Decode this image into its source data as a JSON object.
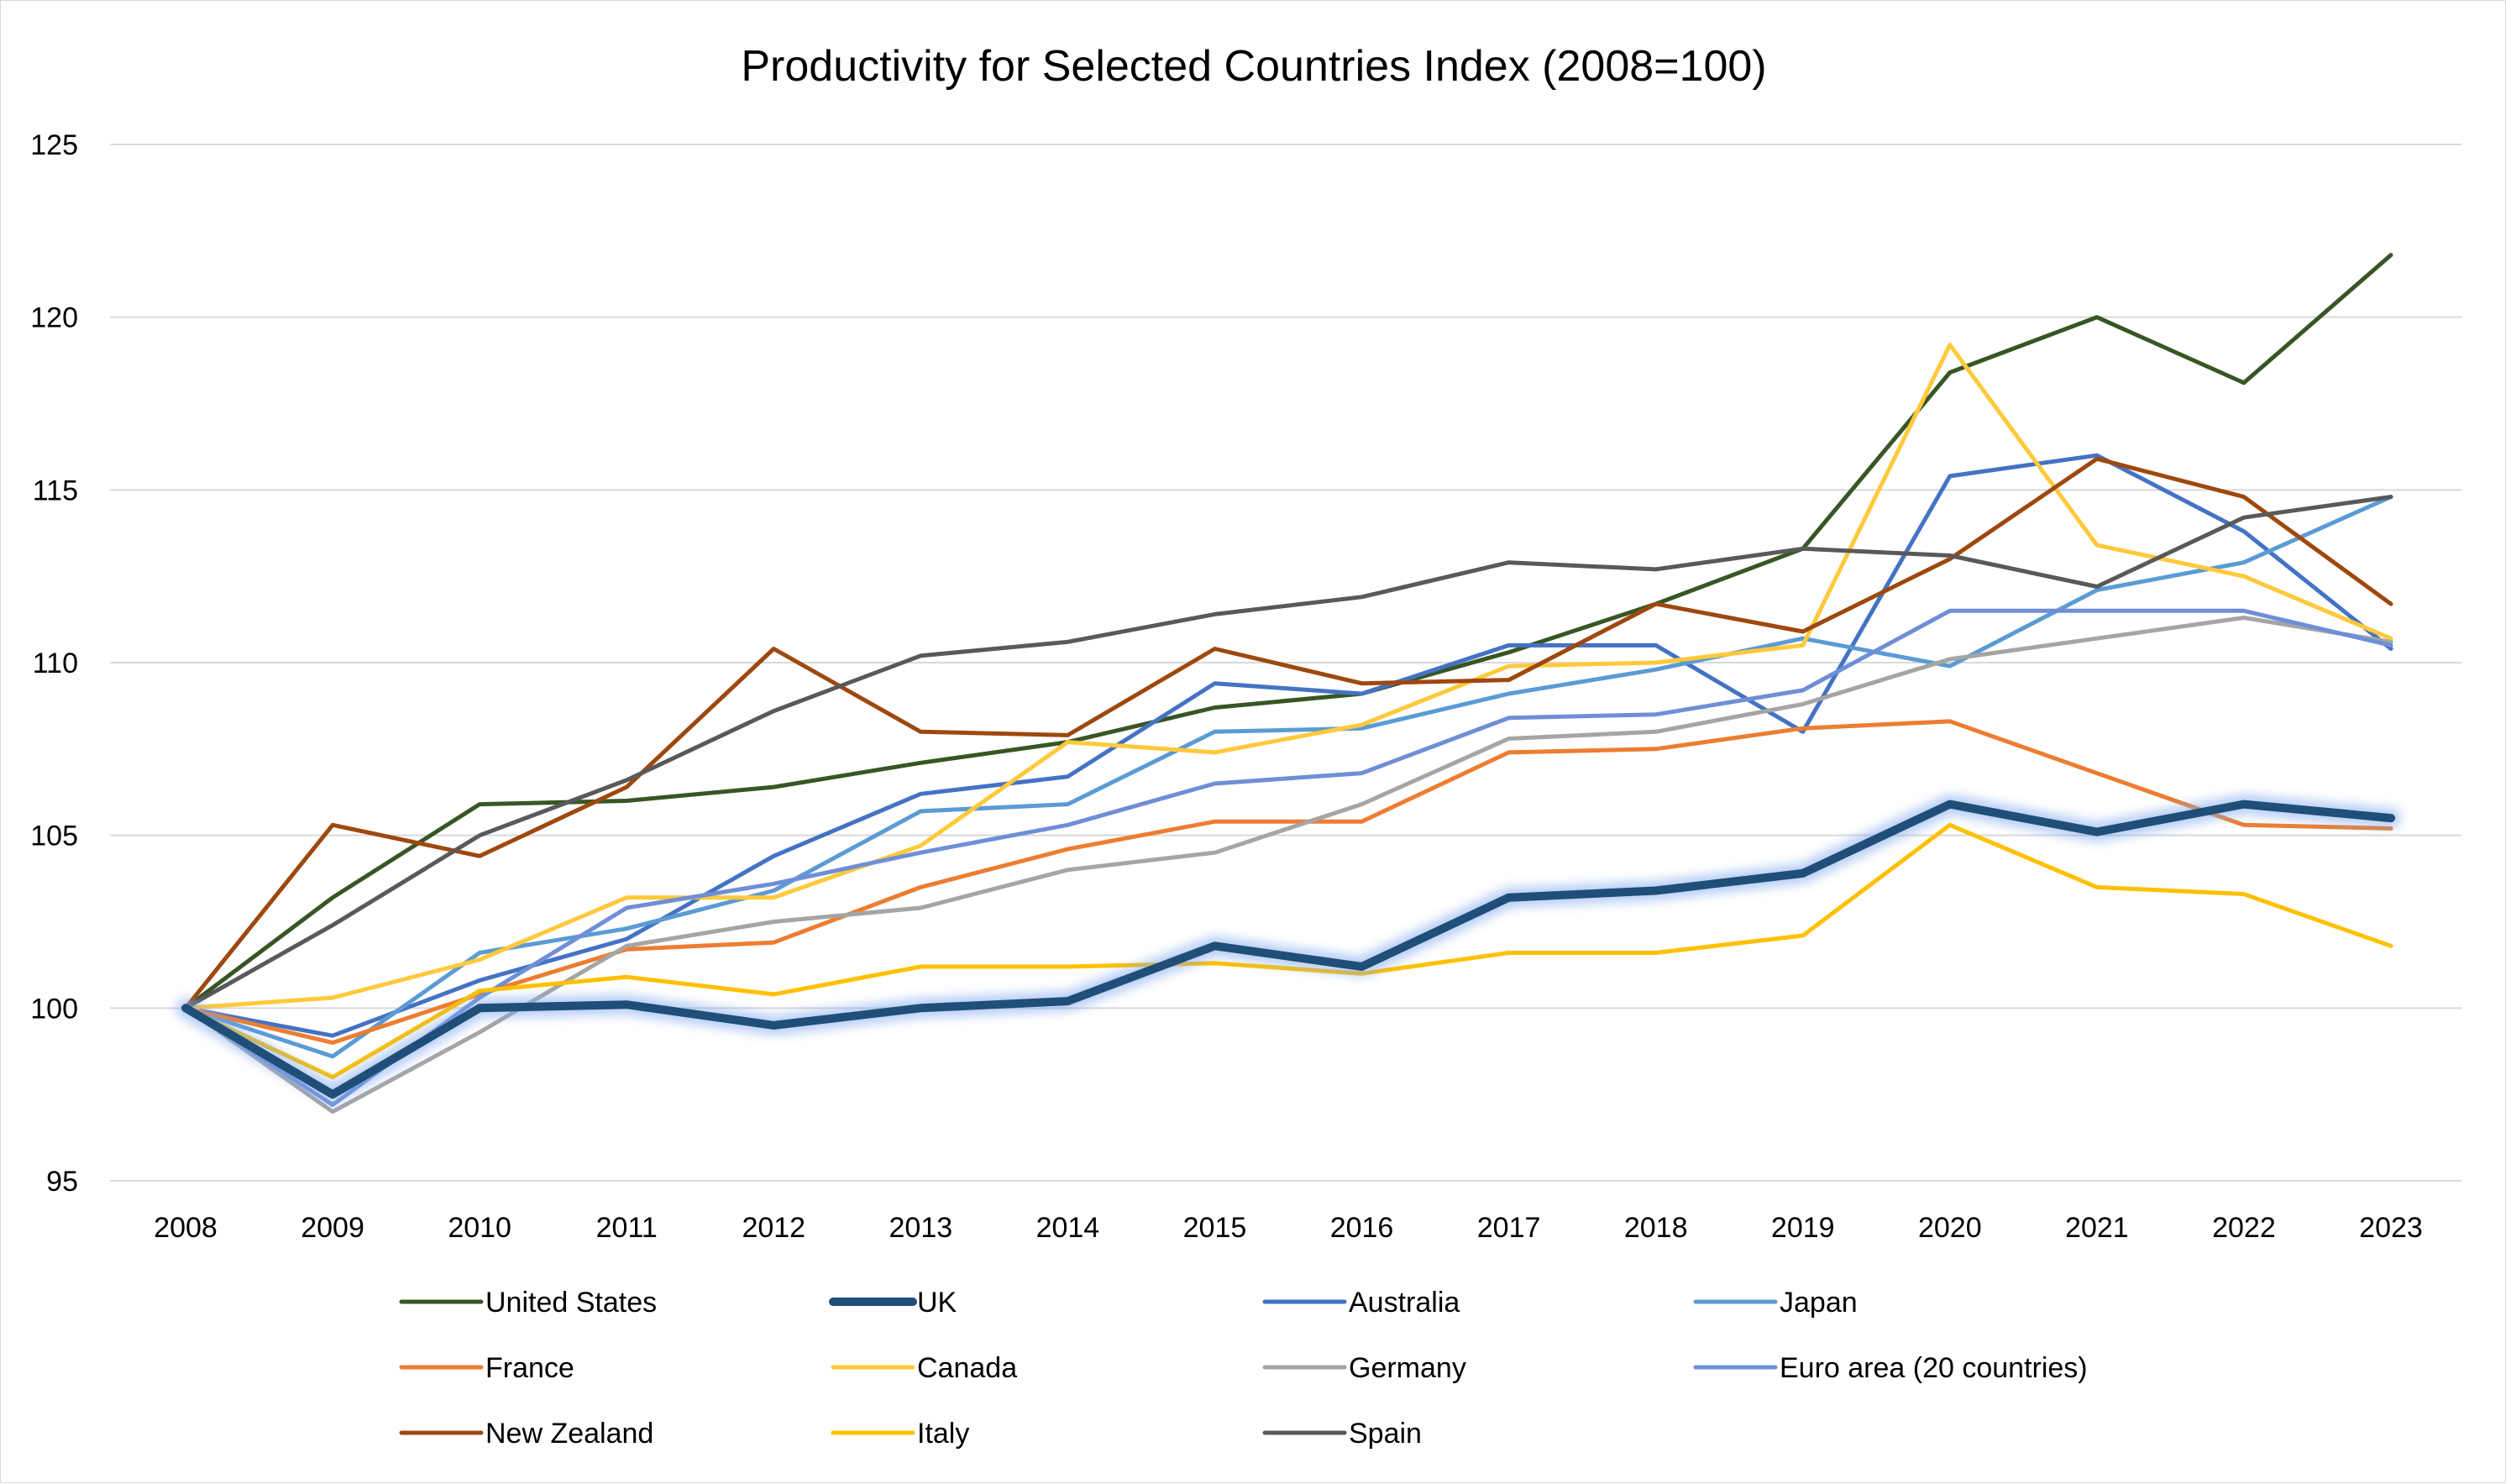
{
  "chart_data": {
    "type": "line",
    "title": "Productivity for Selected Countries Index (2008=100)",
    "xlabel": "",
    "ylabel": "",
    "ylim": [
      95,
      125
    ],
    "yticks": [
      95,
      100,
      105,
      110,
      115,
      120,
      125
    ],
    "grid": true,
    "legend_position": "bottom",
    "highlight_series": "UK",
    "x": [
      "2008",
      "2009",
      "2010",
      "2011",
      "2012",
      "2013",
      "2014",
      "2015",
      "2016",
      "2017",
      "2018",
      "2019",
      "2020",
      "2021",
      "2022",
      "2023"
    ],
    "series": [
      {
        "name": "United States",
        "color": "#375623",
        "values": [
          100,
          103.2,
          105.9,
          106.0,
          106.4,
          107.1,
          107.7,
          108.7,
          109.1,
          110.3,
          111.7,
          113.3,
          118.4,
          120.0,
          118.1,
          121.8
        ]
      },
      {
        "name": "UK",
        "color": "#1f4e79",
        "values": [
          100,
          97.5,
          100.0,
          100.1,
          99.5,
          100.0,
          100.2,
          101.8,
          101.2,
          103.2,
          103.4,
          103.9,
          105.9,
          105.1,
          105.9,
          105.5
        ]
      },
      {
        "name": "Australia",
        "color": "#4472c4",
        "values": [
          100,
          99.2,
          100.8,
          102.0,
          104.4,
          106.2,
          106.7,
          109.4,
          109.1,
          110.5,
          110.5,
          108.0,
          115.4,
          116.0,
          113.8,
          110.4
        ]
      },
      {
        "name": "Japan",
        "color": "#5b9bd5",
        "values": [
          100,
          98.6,
          101.6,
          102.3,
          103.4,
          105.7,
          105.9,
          108.0,
          108.1,
          109.1,
          109.8,
          110.7,
          109.9,
          112.1,
          112.9,
          114.8
        ]
      },
      {
        "name": "France",
        "color": "#ed7d31",
        "values": [
          100,
          99.0,
          100.4,
          101.7,
          101.9,
          103.5,
          104.6,
          105.4,
          105.4,
          107.4,
          107.5,
          108.1,
          108.3,
          106.8,
          105.3,
          105.2
        ]
      },
      {
        "name": "Canada",
        "color": "#ffc93c",
        "values": [
          100,
          100.3,
          101.4,
          103.2,
          103.2,
          104.7,
          107.7,
          107.4,
          108.2,
          109.9,
          110.0,
          110.5,
          119.2,
          113.4,
          112.5,
          110.7
        ]
      },
      {
        "name": "Germany",
        "color": "#a5a5a5",
        "values": [
          100,
          97.0,
          99.3,
          101.8,
          102.5,
          102.9,
          104.0,
          104.5,
          105.9,
          107.8,
          108.0,
          108.8,
          110.1,
          110.7,
          111.3,
          110.6
        ]
      },
      {
        "name": "Euro area (20 countries)",
        "color": "#6e8fd6",
        "values": [
          100,
          97.2,
          100.3,
          102.9,
          103.6,
          104.5,
          105.3,
          106.5,
          106.8,
          108.4,
          108.5,
          109.2,
          111.5,
          111.5,
          111.5,
          110.5
        ]
      },
      {
        "name": "New Zealand",
        "color": "#9e480e",
        "values": [
          100,
          105.3,
          104.4,
          106.4,
          110.4,
          108.0,
          107.9,
          110.4,
          109.4,
          109.5,
          111.7,
          110.9,
          113.0,
          115.9,
          114.8,
          111.7
        ]
      },
      {
        "name": "Italy",
        "color": "#ffc000",
        "values": [
          100,
          98.0,
          100.5,
          100.9,
          100.4,
          101.2,
          101.2,
          101.3,
          101.0,
          101.6,
          101.6,
          102.1,
          105.3,
          103.5,
          103.3,
          101.8
        ]
      },
      {
        "name": "Spain",
        "color": "#595959",
        "values": [
          100,
          102.4,
          105.0,
          106.6,
          108.6,
          110.2,
          110.6,
          111.4,
          111.9,
          112.9,
          112.7,
          113.3,
          113.1,
          112.2,
          114.2,
          114.8
        ]
      }
    ]
  }
}
